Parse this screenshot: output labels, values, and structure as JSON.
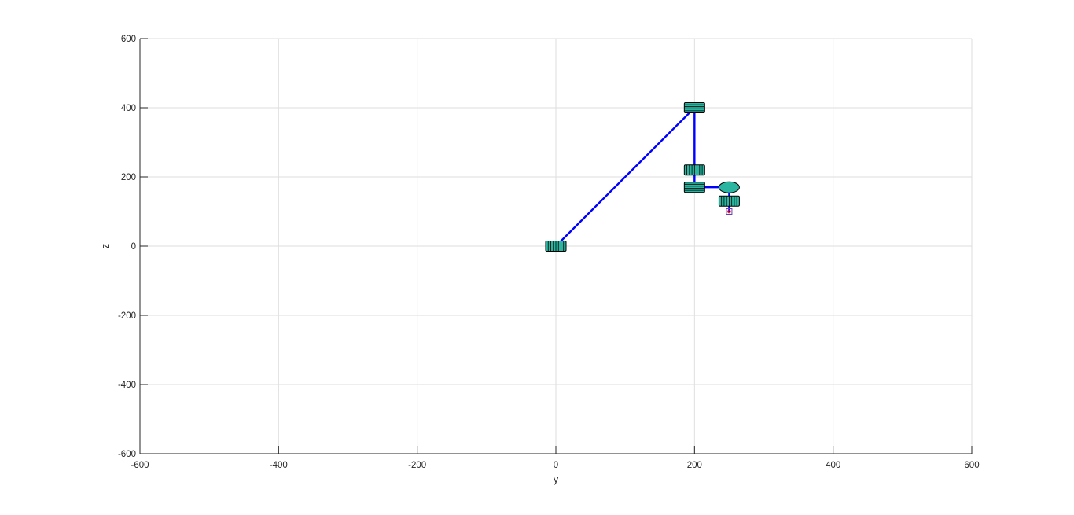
{
  "chart_data": {
    "type": "scatter",
    "title": "",
    "xlabel": "y",
    "ylabel": "z",
    "xlim": [
      -600,
      600
    ],
    "ylim": [
      -600,
      600
    ],
    "xticks": [
      -600,
      -400,
      -200,
      0,
      200,
      400,
      600
    ],
    "yticks": [
      -600,
      -400,
      -200,
      0,
      200,
      400,
      600
    ],
    "grid": true,
    "colors": {
      "link": "#0000ff",
      "joint_fill": "#2ab5a0",
      "joint_edge": "#000000",
      "end_effector_inner": "#ff0000",
      "end_effector_outer": "#6040c0",
      "grid": "#dedede",
      "axis": "#262626"
    },
    "links": [
      {
        "x": [
          0,
          200
        ],
        "y": [
          0,
          400
        ]
      },
      {
        "x": [
          200,
          200
        ],
        "y": [
          400,
          170
        ]
      },
      {
        "x": [
          200,
          250
        ],
        "y": [
          170,
          170
        ]
      },
      {
        "x": [
          250,
          250
        ],
        "y": [
          170,
          100
        ]
      }
    ],
    "joints": [
      {
        "x": 0,
        "y": 0,
        "shape": "cylinder-side"
      },
      {
        "x": 200,
        "y": 400,
        "shape": "cylinder-top"
      },
      {
        "x": 200,
        "y": 220,
        "shape": "cylinder-side"
      },
      {
        "x": 200,
        "y": 170,
        "shape": "cylinder-top"
      },
      {
        "x": 250,
        "y": 170,
        "shape": "ellipse"
      },
      {
        "x": 250,
        "y": 130,
        "shape": "cylinder-side"
      }
    ],
    "end_effector": {
      "x": 250,
      "y": 100
    }
  }
}
